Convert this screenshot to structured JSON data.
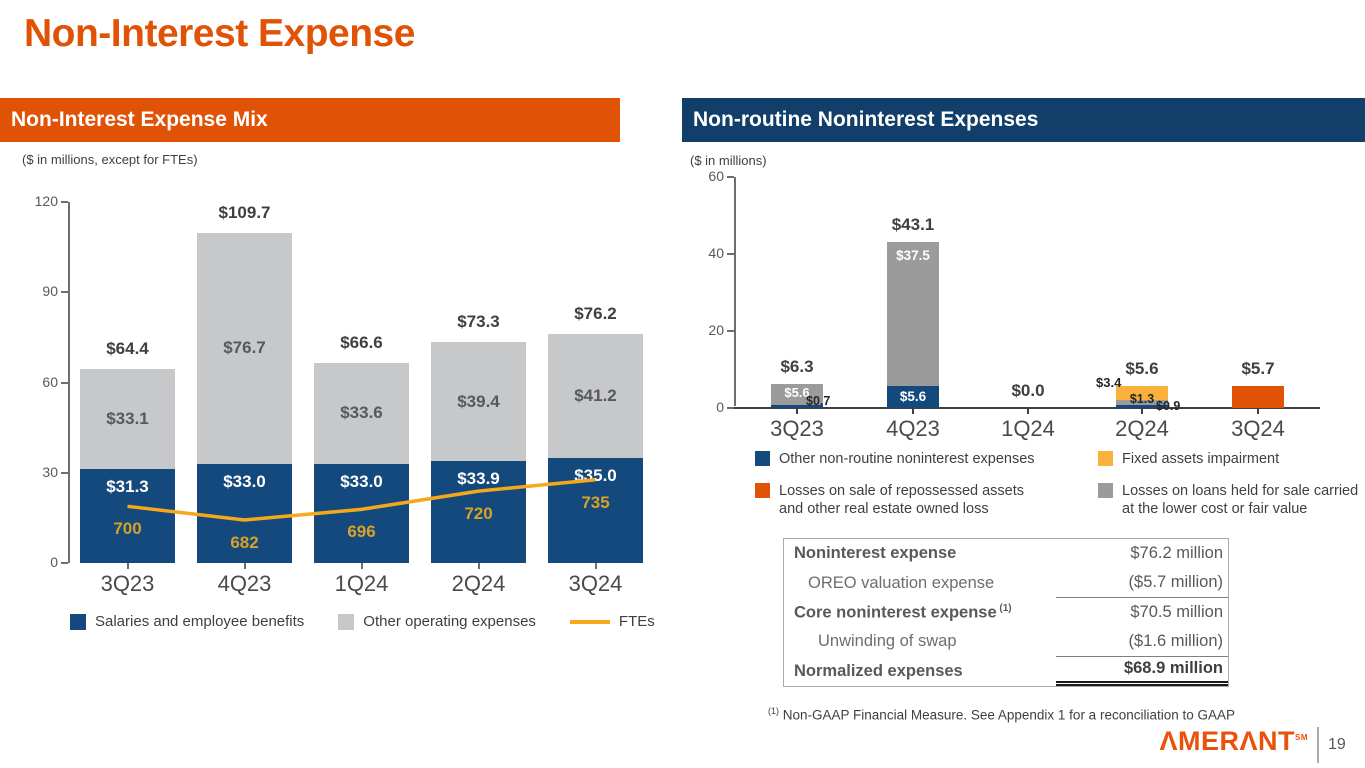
{
  "page": {
    "title": "Non-Interest Expense",
    "page_number": "19",
    "brand": "AMERANT",
    "brand_mark": "SM",
    "footnote_marker": "(1)",
    "footnote": "Non-GAAP Financial Measure. See Appendix 1 for a reconciliation to GAAP"
  },
  "theme": {
    "orange": "#E05206",
    "navy": "#123F6A",
    "bar_blue": "#14497D",
    "light_gray": "#C7C8CA",
    "dark_gray": "#9B9B9B",
    "yellow": "#FBB03B",
    "line_gold": "#F5A81C",
    "fte_label_color": "#D9A127",
    "axis_text": "#595959",
    "value_text": "#404040",
    "axis_line": "#6e6e6e"
  },
  "panels": {
    "left": {
      "header": "Non-Interest Expense Mix",
      "subtitle": "($ in millions, except for FTEs)"
    },
    "right": {
      "header": "Non-routine Noninterest Expenses",
      "subtitle": "($ in millions)"
    }
  },
  "chart_data": [
    {
      "id": "non_interest_expense_mix",
      "type": "bar",
      "stacked": true,
      "title": "Non-Interest Expense Mix",
      "units": "($ in millions, except for FTEs)",
      "categories": [
        "3Q23",
        "4Q23",
        "1Q24",
        "2Q24",
        "3Q24"
      ],
      "series": [
        {
          "name": "Salaries and employee benefits",
          "color": "#14497D",
          "values": [
            31.3,
            33.0,
            33.0,
            33.9,
            35.0
          ],
          "labels": [
            "$31.3",
            "$33.0",
            "$33.0",
            "$33.9",
            "$35.0"
          ]
        },
        {
          "name": "Other operating expenses",
          "color": "#C7C8CA",
          "values": [
            33.1,
            76.7,
            33.6,
            39.4,
            41.2
          ],
          "labels": [
            "$33.1",
            "$76.7",
            "$33.6",
            "$39.4",
            "$41.2"
          ]
        }
      ],
      "totals": [
        64.4,
        109.7,
        66.6,
        73.3,
        76.2
      ],
      "total_labels": [
        "$64.4",
        "$109.7",
        "$66.6",
        "$73.3",
        "$76.2"
      ],
      "line_series": {
        "name": "FTEs",
        "color": "#F5A81C",
        "values": [
          700,
          682,
          696,
          720,
          735
        ],
        "labels": [
          "700",
          "682",
          "696",
          "720",
          "735"
        ]
      },
      "ylim": [
        0,
        120
      ],
      "yticks": [
        0,
        30,
        60,
        90,
        120
      ],
      "grid": false,
      "legend_position": "bottom"
    },
    {
      "id": "non_routine_noninterest_expenses",
      "type": "bar",
      "stacked": true,
      "title": "Non-routine Noninterest Expenses",
      "units": "($ in millions)",
      "categories": [
        "3Q23",
        "4Q23",
        "1Q24",
        "2Q24",
        "3Q24"
      ],
      "series": [
        {
          "name": "Other non-routine noninterest expenses",
          "color": "#14497D",
          "values": [
            0.7,
            5.6,
            0,
            0.9,
            0
          ]
        },
        {
          "name": "Losses on loans held for sale carried at the lower cost or fair value",
          "color": "#9B9B9B",
          "values": [
            5.6,
            37.5,
            0,
            1.3,
            0
          ]
        },
        {
          "name": "Fixed assets impairment",
          "color": "#FBB03B",
          "values": [
            0,
            0,
            0,
            3.4,
            0
          ]
        },
        {
          "name": "Losses on sale of repossessed assets and other real estate owned loss",
          "color": "#E05206",
          "values": [
            0,
            0,
            0,
            0,
            5.7
          ]
        }
      ],
      "totals": [
        6.3,
        43.1,
        0.0,
        5.6,
        5.7
      ],
      "total_labels": [
        "$6.3",
        "$43.1",
        "$0.0",
        "$5.6",
        "$5.7"
      ],
      "segment_labels": [
        "$5.6",
        "$0.7",
        "$37.5",
        "$5.6",
        "$3.4",
        "$1.3",
        "$0.9"
      ],
      "ylim": [
        0,
        60
      ],
      "yticks": [
        0,
        20,
        40,
        60
      ],
      "grid": false,
      "legend_position": "bottom"
    }
  ],
  "summary_table": {
    "rows": [
      {
        "label": "Noninterest expense",
        "value": "$76.2 million",
        "bold": true
      },
      {
        "label": "OREO valuation expense",
        "value": "($5.7 million)",
        "indent": 1,
        "underline": true
      },
      {
        "label": "Core noninterest expense",
        "sup": "(1)",
        "value": "$70.5 million",
        "bold": true
      },
      {
        "label": "Unwinding of swap",
        "value": "($1.6 million)",
        "indent": 2,
        "underline": true
      },
      {
        "label": "Normalized expenses",
        "value": "$68.9 million",
        "bold": true,
        "value_bold": true,
        "double_underline": true
      }
    ]
  }
}
